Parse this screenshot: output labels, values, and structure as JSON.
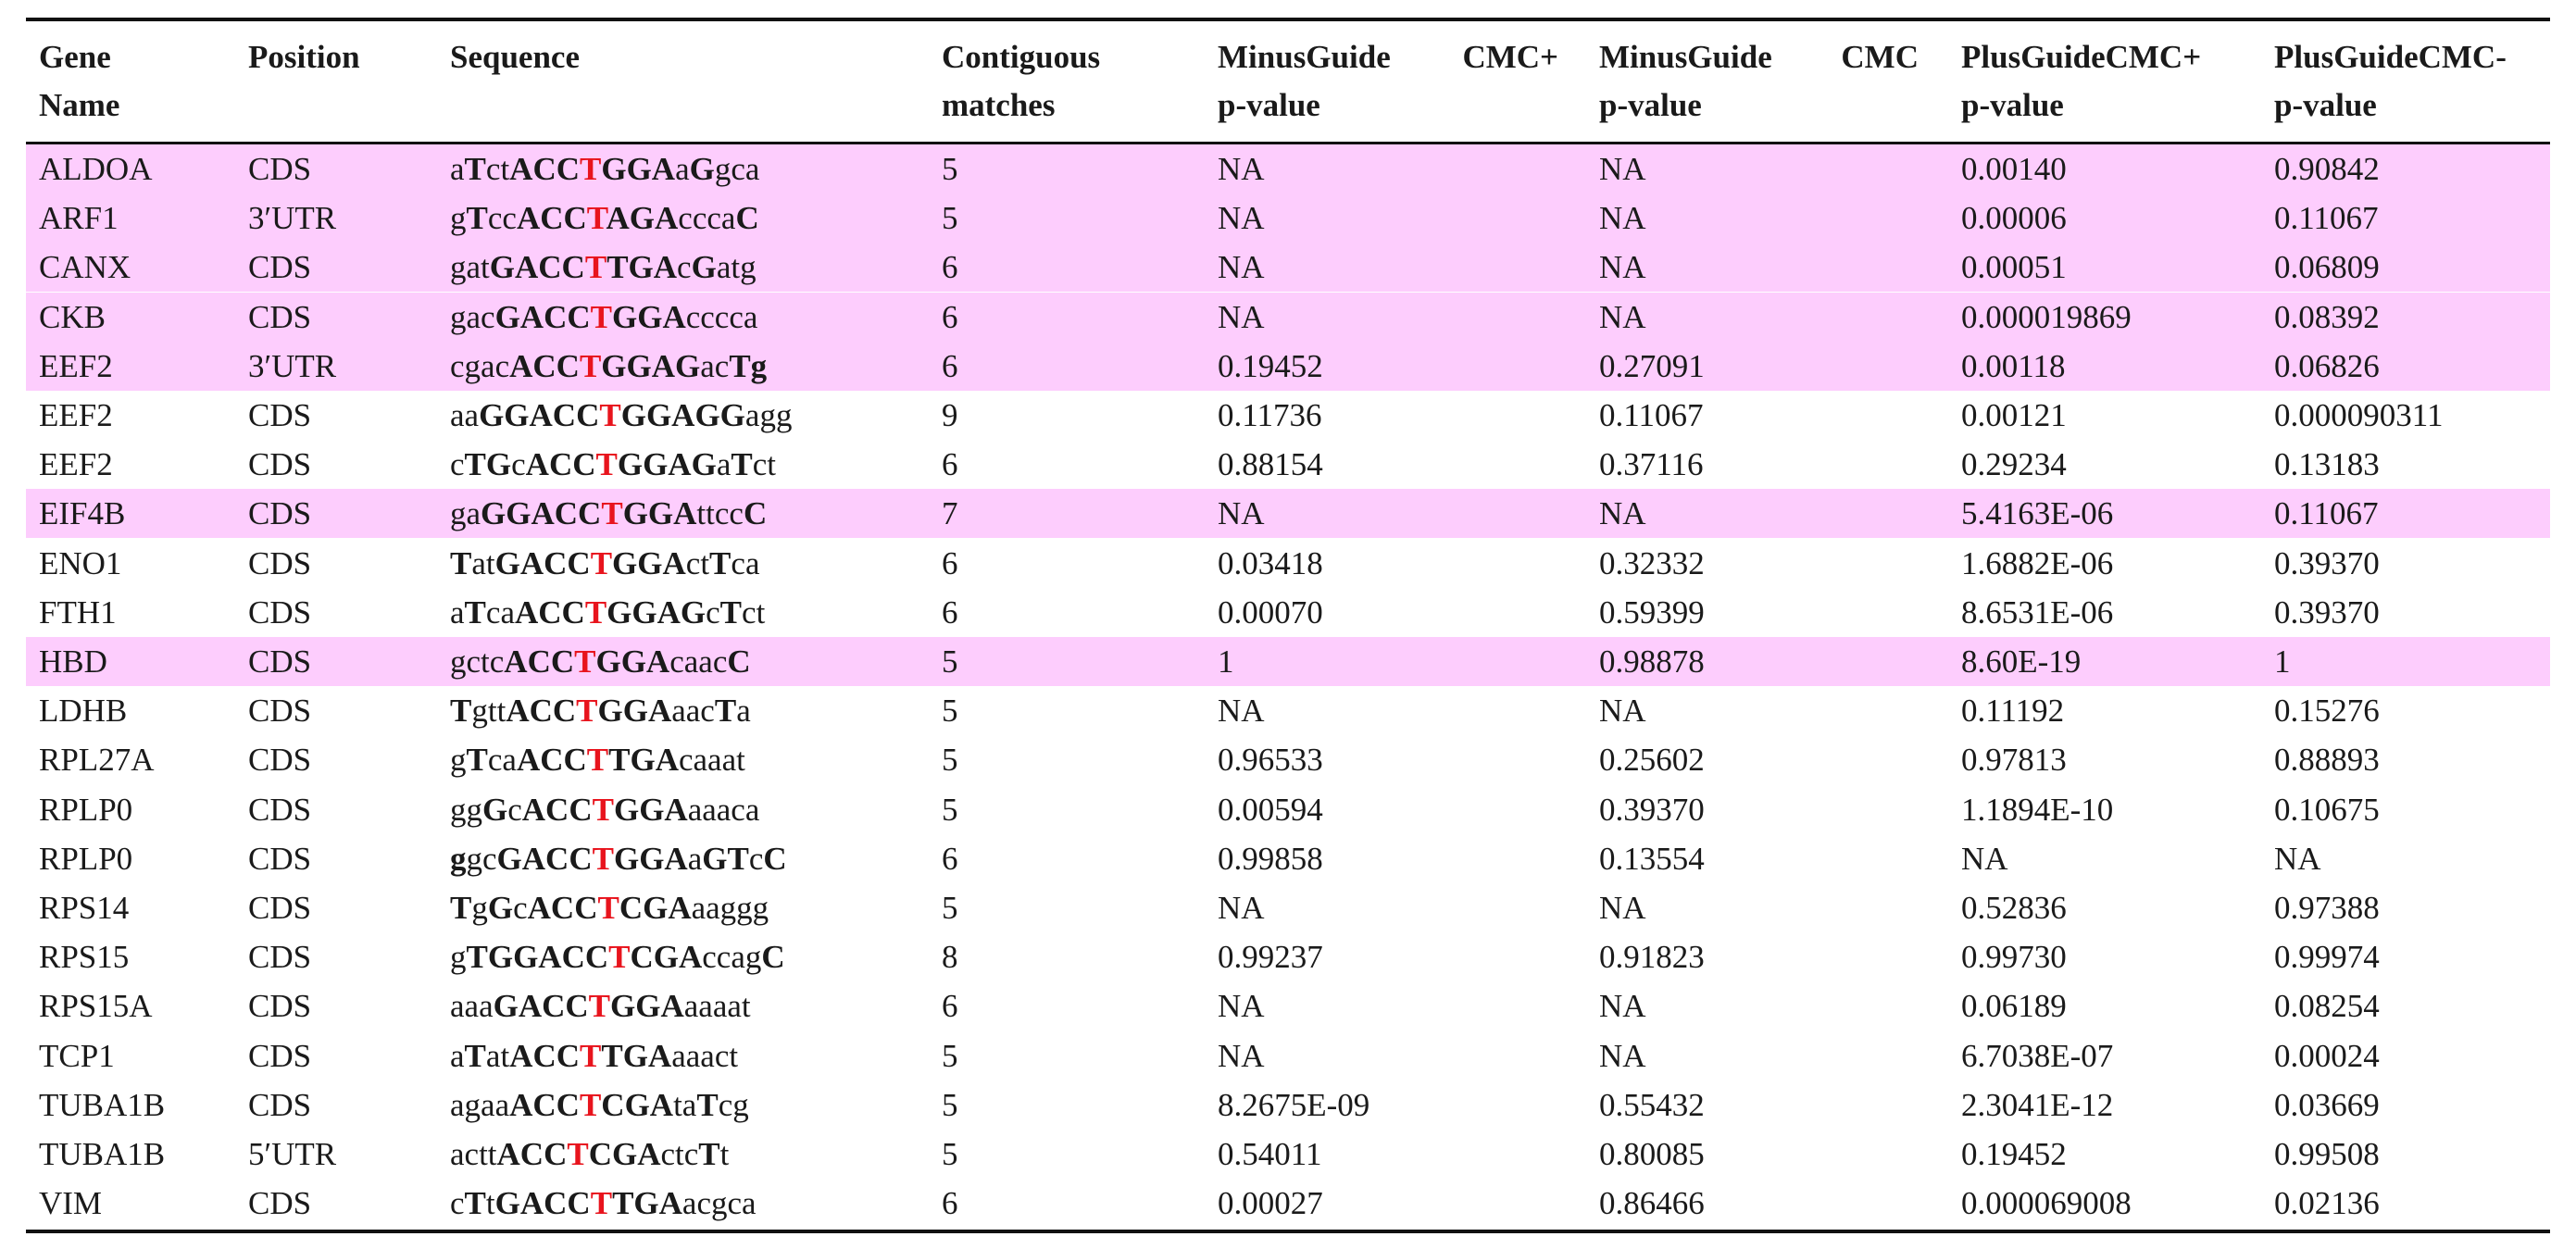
{
  "headers": [
    {
      "l1": "Gene",
      "l2": "Name"
    },
    {
      "l1": "Position",
      "l2": ""
    },
    {
      "l1": "Sequence",
      "l2": ""
    },
    {
      "l1": "Contiguous",
      "l2": "matches"
    },
    {
      "l1a": "MinusGuide",
      "l1b": "CMC+",
      "l2": "p-value"
    },
    {
      "l1a": "MinusGuide",
      "l1b": "CMC",
      "l2": "p-value"
    },
    {
      "l1": "PlusGuideCMC+",
      "l2": "p-value"
    },
    {
      "l1": "PlusGuideCMC-",
      "l2": "p-value"
    }
  ],
  "colors": {
    "highlight": "#fdcdfd",
    "mismatch_t": "#e8141d"
  },
  "rows": [
    {
      "gene": "ALDOA",
      "pos": "CDS",
      "seq": "a[T]ct[ACC]{T}[GGA]a[G]gca",
      "matches": "5",
      "mg_plus": "NA",
      "mg_minus": "NA",
      "pg_plus": "0.00140",
      "pg_minus": "0.90842",
      "hl": true
    },
    {
      "gene": "ARF1",
      "pos": "3′UTR",
      "seq": "g[T]cc[ACC]{T}[AGA]ccca[C]",
      "matches": "5",
      "mg_plus": "NA",
      "mg_minus": "NA",
      "pg_plus": "0.00006",
      "pg_minus": "0.11067",
      "hl": true
    },
    {
      "gene": "CANX",
      "pos": "CDS",
      "seq": "gat[GACC]{T}[TGA]c[G]atg",
      "matches": "6",
      "mg_plus": "NA",
      "mg_minus": "NA",
      "pg_plus": "0.00051",
      "pg_minus": "0.06809",
      "hl": true
    },
    {
      "gene": "CKB",
      "pos": "CDS",
      "seq": "gac[GACC]{T}[GGA]cccca",
      "matches": "6",
      "mg_plus": "NA",
      "mg_minus": "NA",
      "pg_plus": "0.000019869",
      "pg_minus": "0.08392",
      "hl": true
    },
    {
      "gene": "EEF2",
      "pos": "3′UTR",
      "seq": "cgac[ACC]{T}[GGAG]ac[Tg]",
      "matches": "6",
      "mg_plus": "0.19452",
      "mg_minus": "0.27091",
      "pg_plus": "0.00118",
      "pg_minus": "0.06826",
      "hl": true
    },
    {
      "gene": "EEF2",
      "pos": "CDS",
      "seq": "aa[GGACC]{T}[GGAGG]agg",
      "matches": "9",
      "mg_plus": "0.11736",
      "mg_minus": "0.11067",
      "pg_plus": "0.00121",
      "pg_minus": "0.000090311",
      "hl": false
    },
    {
      "gene": "EEF2",
      "pos": "CDS",
      "seq": "c[TG]c[ACC]{T}[GGAG]a[T]ct",
      "matches": "6",
      "mg_plus": "0.88154",
      "mg_minus": "0.37116",
      "pg_plus": "0.29234",
      "pg_minus": "0.13183",
      "hl": false
    },
    {
      "gene": "EIF4B",
      "pos": "CDS",
      "seq": "ga[GGACC]{T}[GGA]ttcc[C]",
      "matches": "7",
      "mg_plus": "NA",
      "mg_minus": "NA",
      "pg_plus": "5.4163E-06",
      "pg_minus": "0.11067",
      "hl": true
    },
    {
      "gene": "ENO1",
      "pos": "CDS",
      "seq": "[T]at[GACC]{T}[GGA]ct[T]ca",
      "matches": "6",
      "mg_plus": "0.03418",
      "mg_minus": "0.32332",
      "pg_plus": "1.6882E-06",
      "pg_minus": "0.39370",
      "hl": false
    },
    {
      "gene": "FTH1",
      "pos": "CDS",
      "seq": "a[T]ca[ACC]{T}[GGAG]c[T]ct",
      "matches": "6",
      "mg_plus": "0.00070",
      "mg_minus": "0.59399",
      "pg_plus": "8.6531E-06",
      "pg_minus": "0.39370",
      "hl": false
    },
    {
      "gene": "HBD",
      "pos": "CDS",
      "seq": "gctc[ACC]{T}[GGA]caac[C]",
      "matches": "5",
      "mg_plus": "1",
      "mg_minus": "0.98878",
      "pg_plus": "8.60E-19",
      "pg_minus": "1",
      "hl": true
    },
    {
      "gene": "LDHB",
      "pos": "CDS",
      "seq": "[T]gtt[ACC]{T}[GGA]aac[T]a",
      "matches": "5",
      "mg_plus": "NA",
      "mg_minus": "NA",
      "pg_plus": "0.11192",
      "pg_minus": "0.15276",
      "hl": false
    },
    {
      "gene": "RPL27A",
      "pos": "CDS",
      "seq": "g[T]ca[ACC]{T}[TGA]caaat",
      "matches": "5",
      "mg_plus": "0.96533",
      "mg_minus": "0.25602",
      "pg_plus": "0.97813",
      "pg_minus": "0.88893",
      "hl": false
    },
    {
      "gene": "RPLP0",
      "pos": "CDS",
      "seq": "gg[G]c[ACC]{T}[GGA]aaaca",
      "matches": "5",
      "mg_plus": "0.00594",
      "mg_minus": "0.39370",
      "pg_plus": "1.1894E-10",
      "pg_minus": "0.10675",
      "hl": false
    },
    {
      "gene": "RPLP0",
      "pos": "CDS",
      "seq": "[g]gc[GACC]{T}[GGA]a[GT]c[C]",
      "matches": "6",
      "mg_plus": "0.99858",
      "mg_minus": "0.13554",
      "pg_plus": "NA",
      "pg_minus": "NA",
      "hl": false
    },
    {
      "gene": "RPS14",
      "pos": "CDS",
      "seq": "[T]g[G]c[ACC]{T}[CGA]aaggg",
      "matches": "5",
      "mg_plus": "NA",
      "mg_minus": "NA",
      "pg_plus": "0.52836",
      "pg_minus": "0.97388",
      "hl": false
    },
    {
      "gene": "RPS15",
      "pos": "CDS",
      "seq": "g[TGGACC]{T}[CGA]ccag[C]",
      "matches": "8",
      "mg_plus": "0.99237",
      "mg_minus": "0.91823",
      "pg_plus": "0.99730",
      "pg_minus": "0.99974",
      "hl": false
    },
    {
      "gene": "RPS15A",
      "pos": "CDS",
      "seq": "aaa[GACC]{T}[GGA]aaaat",
      "matches": "6",
      "mg_plus": "NA",
      "mg_minus": "NA",
      "pg_plus": "0.06189",
      "pg_minus": "0.08254",
      "hl": false
    },
    {
      "gene": "TCP1",
      "pos": "CDS",
      "seq": "a[T]at[ACC]{T}[TGA]aaact",
      "matches": "5",
      "mg_plus": "NA",
      "mg_minus": "NA",
      "pg_plus": "6.7038E-07",
      "pg_minus": "0.00024",
      "hl": false
    },
    {
      "gene": "TUBA1B",
      "pos": "CDS",
      "seq": "agaa[ACC]{T}[CGA]ta[T]cg",
      "matches": "5",
      "mg_plus": "8.2675E-09",
      "mg_minus": "0.55432",
      "pg_plus": "2.3041E-12",
      "pg_minus": "0.03669",
      "hl": false
    },
    {
      "gene": "TUBA1B",
      "pos": "5′UTR",
      "seq": "actt[ACC]{T}[CGA]ctc[T]t",
      "matches": "5",
      "mg_plus": "0.54011",
      "mg_minus": "0.80085",
      "pg_plus": "0.19452",
      "pg_minus": "0.99508",
      "hl": false
    },
    {
      "gene": "VIM",
      "pos": "CDS",
      "seq": "c[T]t[GACC]{T}[TGA]acgca",
      "matches": "6",
      "mg_plus": "0.00027",
      "mg_minus": "0.86466",
      "pg_plus": "0.000069008",
      "pg_minus": "0.02136",
      "hl": false
    }
  ]
}
